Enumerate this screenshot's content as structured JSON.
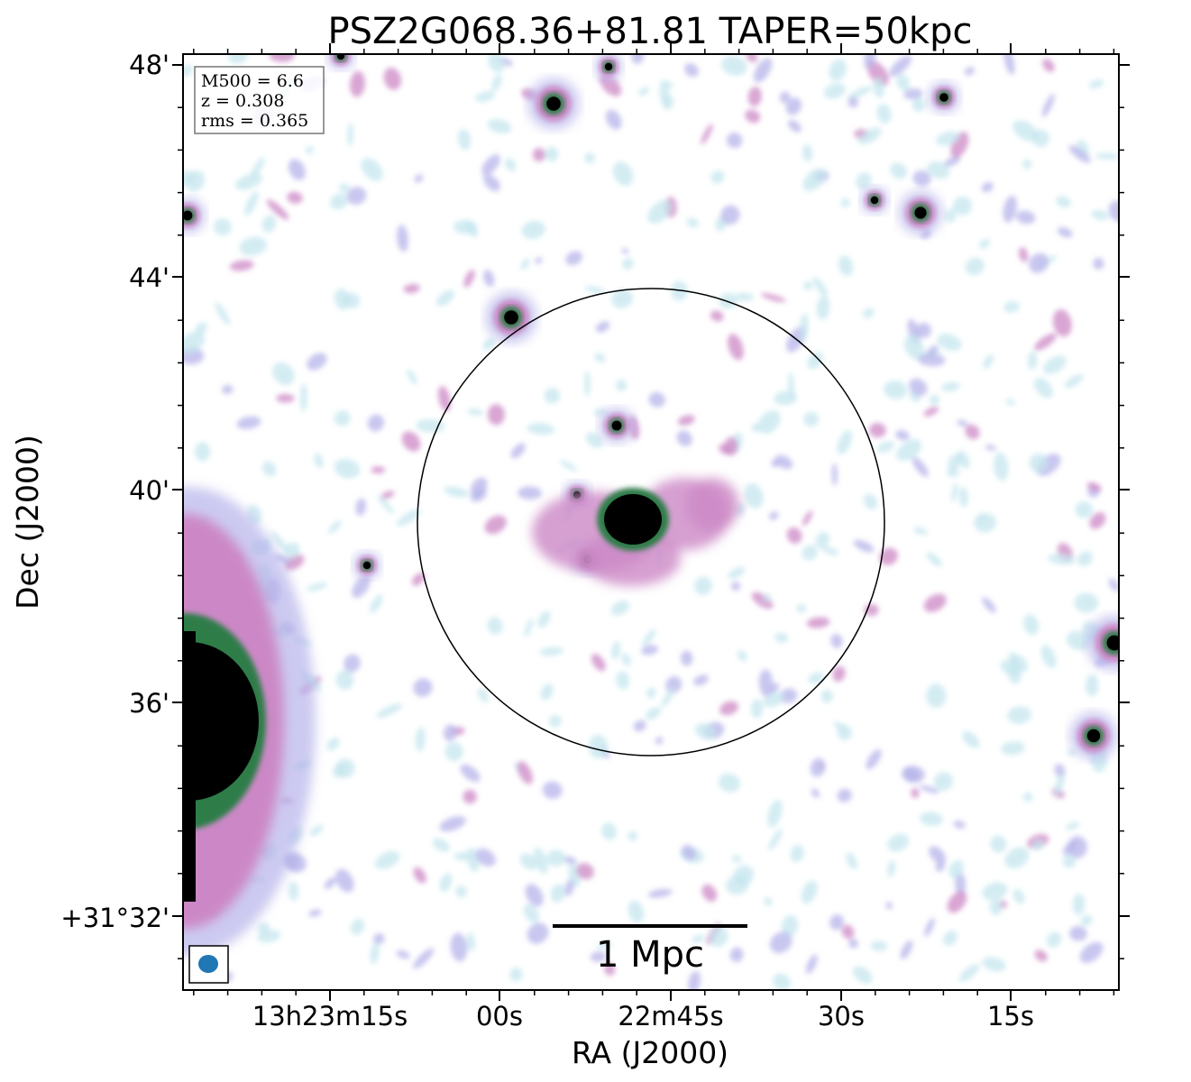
{
  "title": "PSZ2G068.36+81.81 TAPER=50kpc",
  "info_box": [
    "M500 = 6.6",
    "z = 0.308",
    "rms = 0.365"
  ],
  "axes": {
    "xlabel": "RA (J2000)",
    "ylabel": "Dec (J2000)",
    "x_ticks": [
      "13h23m15s",
      "00s",
      "22m45s",
      "30s",
      "15s"
    ],
    "y_ticks": [
      "48'",
      "44'",
      "40'",
      "36'",
      "+31°32'"
    ]
  },
  "scale_bar": {
    "label": "1 Mpc"
  },
  "colors": {
    "faint": "#c4e6ee",
    "low": "#b7b4ea",
    "mid": "#cc88c6",
    "high": "#2e7d4a",
    "peak": "#000000",
    "beam": "#1f77b4"
  }
}
